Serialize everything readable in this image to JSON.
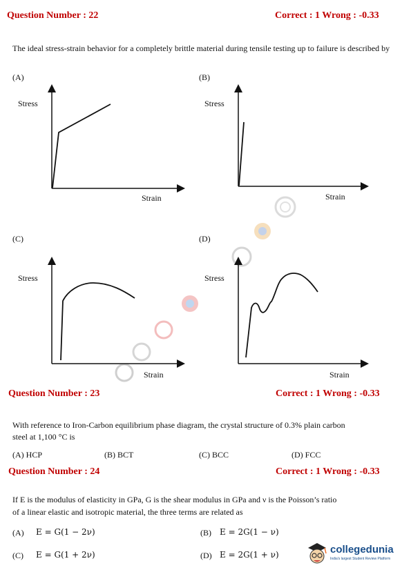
{
  "q22": {
    "header": "Question Number : 22",
    "marks": "Correct : 1  Wrong : -0.33",
    "text": "The ideal stress-strain behavior for a completely brittle material during tensile testing up to failure  is described by",
    "graphs": [
      {
        "label": "(A)",
        "ylabel": "Stress",
        "xlabel": "Strain"
      },
      {
        "label": "(B)",
        "ylabel": "Stress",
        "xlabel": "Strain"
      },
      {
        "label": "(C)",
        "ylabel": "Stress",
        "xlabel": "Strain"
      },
      {
        "label": "(D)",
        "ylabel": "Stress",
        "xlabel": "Strain"
      }
    ]
  },
  "q23": {
    "header": "Question Number : 23",
    "marks": "Correct : 1  Wrong : -0.33",
    "text_line1": "With reference to Iron-Carbon equilibrium phase diagram, the crystal structure of 0.3% plain carbon",
    "text_line2": "steel at 1,100 °C is",
    "options": [
      "(A) HCP",
      "(B) BCT",
      "(C) BCC",
      "(D) FCC"
    ]
  },
  "q24": {
    "header": "Question Number : 24",
    "marks": "Correct : 1  Wrong : -0.33",
    "text_line1": "If E is the modulus of elasticity in GPa, G is the shear modulus in GPa and ν is the Poisson’s ratio",
    "text_line2": "of a linear elastic and isotropic material, the three terms are related as",
    "options": [
      {
        "label": "(A)",
        "formula": "E = G(1 − 2ν)"
      },
      {
        "label": "(B)",
        "formula": "E = 2G(1 − ν)"
      },
      {
        "label": "(C)",
        "formula": "E = G(1 + 2ν)"
      },
      {
        "label": "(D)",
        "formula": "E = 2G(1 + ν)"
      }
    ]
  },
  "logo": {
    "brand": "collegedunia",
    "tagline": "India's largest Student Review Platform",
    "colors": {
      "brand": "#1a4f8b",
      "accent": "#f26b21"
    }
  }
}
